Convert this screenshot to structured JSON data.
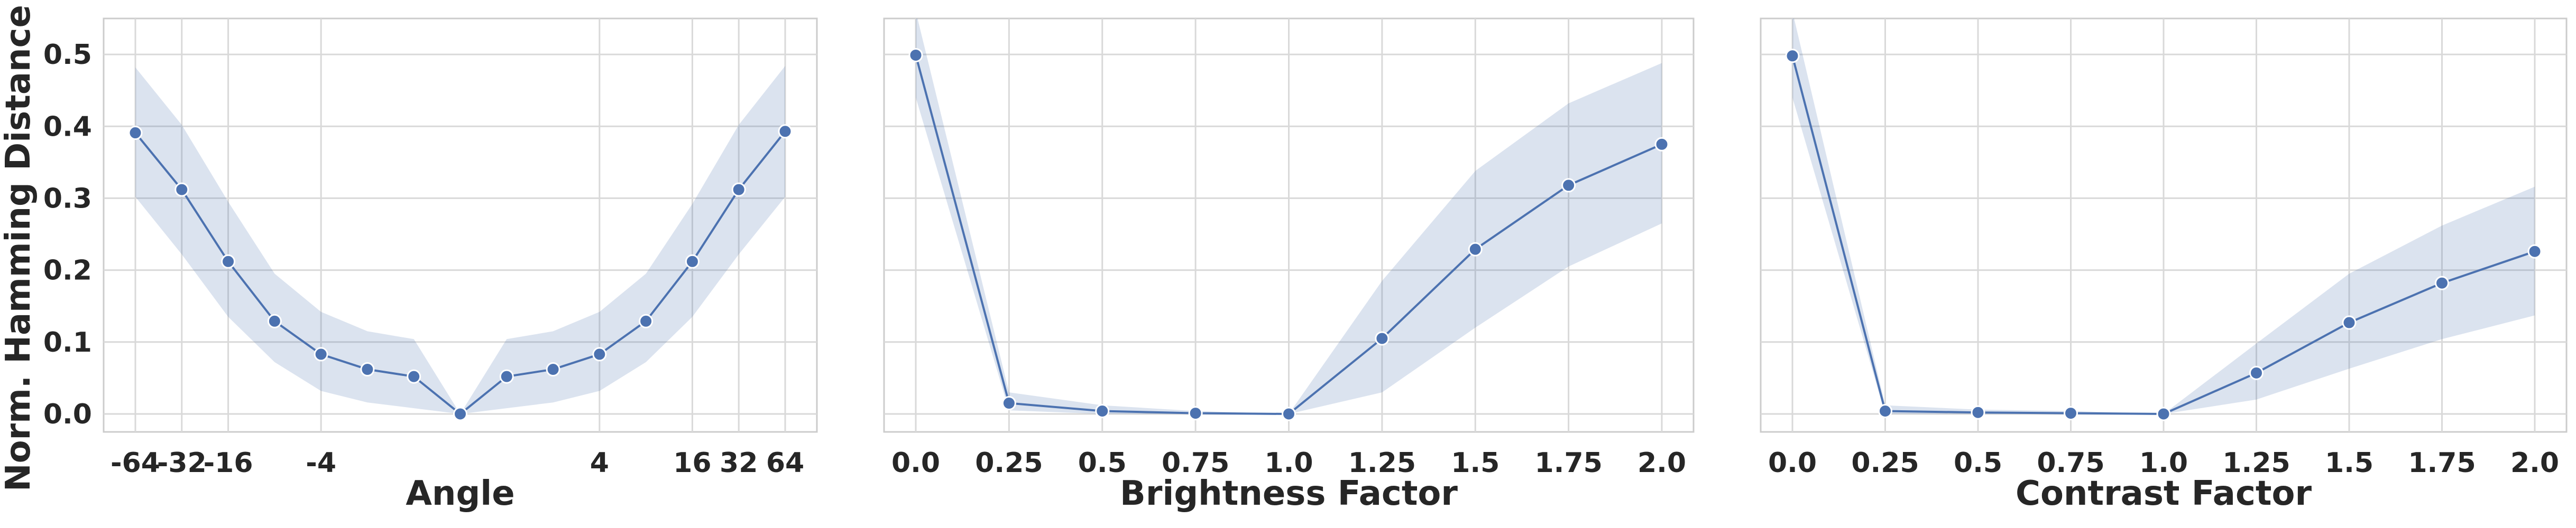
{
  "ylabel": "Norm. Hamming Distance",
  "yticks": [
    "0.0",
    "0.1",
    "0.2",
    "0.3",
    "0.4",
    "0.5"
  ],
  "colors": {
    "line": "#4c72b0",
    "grid": "#d9d9d9",
    "frame": "#cccccc"
  },
  "chart_data": [
    {
      "type": "line",
      "xlabel": "Angle",
      "ylabel": "Norm. Hamming Distance",
      "xscale": "symlog",
      "xticks": [
        "-64",
        "-32",
        "-16",
        "-4",
        "4",
        "16",
        "32",
        "64"
      ],
      "xtick_values": [
        -64,
        -32,
        -16,
        -4,
        4,
        16,
        32,
        64
      ],
      "ylim": [
        -0.025,
        0.55
      ],
      "grid": true,
      "x": [
        -64,
        -32,
        -16,
        -8,
        -4,
        -2,
        -1,
        0,
        1,
        2,
        4,
        8,
        16,
        32,
        64
      ],
      "y": [
        0.391,
        0.312,
        0.212,
        0.129,
        0.083,
        0.062,
        0.052,
        0.0,
        0.052,
        0.062,
        0.083,
        0.129,
        0.212,
        0.312,
        0.393
      ],
      "y_lower": [
        0.302,
        0.222,
        0.135,
        0.072,
        0.032,
        0.016,
        0.008,
        0.0,
        0.008,
        0.016,
        0.032,
        0.072,
        0.135,
        0.222,
        0.302
      ],
      "y_upper": [
        0.482,
        0.402,
        0.295,
        0.195,
        0.142,
        0.115,
        0.104,
        0.0,
        0.104,
        0.115,
        0.142,
        0.195,
        0.292,
        0.402,
        0.484
      ]
    },
    {
      "type": "line",
      "xlabel": "Brightness Factor",
      "ylabel": "Norm. Hamming Distance",
      "xticks": [
        "0.0",
        "0.25",
        "0.5",
        "0.75",
        "1.0",
        "1.25",
        "1.5",
        "1.75",
        "2.0"
      ],
      "xtick_values": [
        0,
        0.25,
        0.5,
        0.75,
        1.0,
        1.25,
        1.5,
        1.75,
        2.0
      ],
      "ylim": [
        -0.025,
        0.55
      ],
      "grid": true,
      "x": [
        0,
        0.25,
        0.5,
        0.75,
        1.0,
        1.25,
        1.5,
        1.75,
        2.0
      ],
      "y": [
        0.499,
        0.015,
        0.004,
        0.001,
        0.0,
        0.105,
        0.229,
        0.318,
        0.375
      ],
      "y_lower": [
        0.44,
        0.005,
        0.0,
        0.0,
        0.0,
        0.03,
        0.12,
        0.205,
        0.265
      ],
      "y_upper": [
        0.56,
        0.03,
        0.012,
        0.004,
        0.0,
        0.185,
        0.338,
        0.432,
        0.488
      ]
    },
    {
      "type": "line",
      "xlabel": "Contrast Factor",
      "ylabel": "Norm. Hamming Distance",
      "xticks": [
        "0.0",
        "0.25",
        "0.5",
        "0.75",
        "1.0",
        "1.25",
        "1.5",
        "1.75",
        "2.0"
      ],
      "xtick_values": [
        0,
        0.25,
        0.5,
        0.75,
        1.0,
        1.25,
        1.5,
        1.75,
        2.0
      ],
      "ylim": [
        -0.025,
        0.55
      ],
      "grid": true,
      "x": [
        0,
        0.25,
        0.5,
        0.75,
        1.0,
        1.25,
        1.5,
        1.75,
        2.0
      ],
      "y": [
        0.498,
        0.004,
        0.002,
        0.001,
        0.0,
        0.057,
        0.127,
        0.182,
        0.226
      ],
      "y_lower": [
        0.44,
        0.0,
        0.0,
        0.0,
        0.0,
        0.02,
        0.063,
        0.104,
        0.137
      ],
      "y_upper": [
        0.56,
        0.012,
        0.006,
        0.004,
        0.0,
        0.098,
        0.195,
        0.262,
        0.316
      ]
    }
  ]
}
